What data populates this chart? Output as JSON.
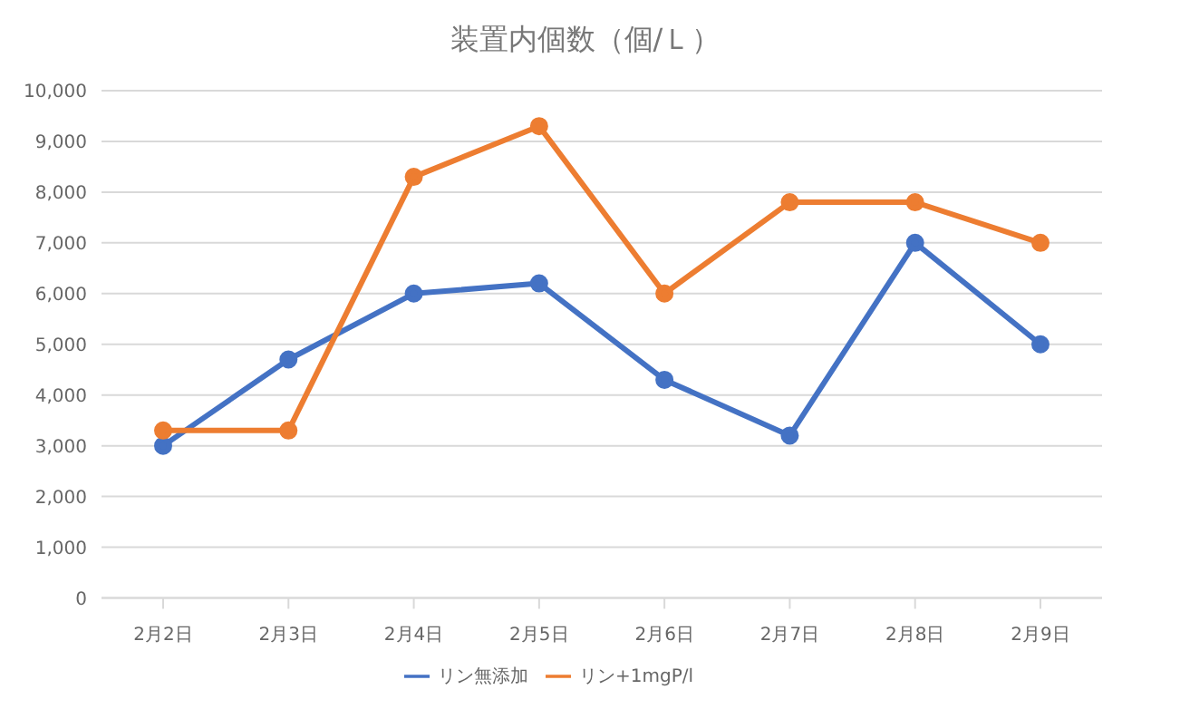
{
  "chart_data": {
    "type": "line",
    "title": "装置内個数（個/Ｌ）",
    "categories": [
      "2月2日",
      "2月3日",
      "2月4日",
      "2月5日",
      "2月6日",
      "2月7日",
      "2月8日",
      "2月9日"
    ],
    "series": [
      {
        "name": "リン無添加",
        "color": "#4472c4",
        "values": [
          3000,
          4700,
          6000,
          6200,
          4300,
          3200,
          7000,
          5000
        ]
      },
      {
        "name": "リン+1mgP/l",
        "color": "#ed7d31",
        "values": [
          3300,
          3300,
          8300,
          9300,
          6000,
          7800,
          7800,
          7000
        ]
      }
    ],
    "ylim": [
      0,
      10000
    ],
    "yticks": [
      {
        "value": 0,
        "label": "0"
      },
      {
        "value": 1000,
        "label": "1,000"
      },
      {
        "value": 2000,
        "label": "2,000"
      },
      {
        "value": 3000,
        "label": "3,000"
      },
      {
        "value": 4000,
        "label": "4,000"
      },
      {
        "value": 5000,
        "label": "5,000"
      },
      {
        "value": 6000,
        "label": "6,000"
      },
      {
        "value": 7000,
        "label": "7,000"
      },
      {
        "value": 8000,
        "label": "8,000"
      },
      {
        "value": 9000,
        "label": "9,000"
      },
      {
        "value": 10000,
        "label": "10,000"
      }
    ],
    "grid": "y",
    "legend": "bottom",
    "marker": "circle",
    "line_style": "solid"
  }
}
